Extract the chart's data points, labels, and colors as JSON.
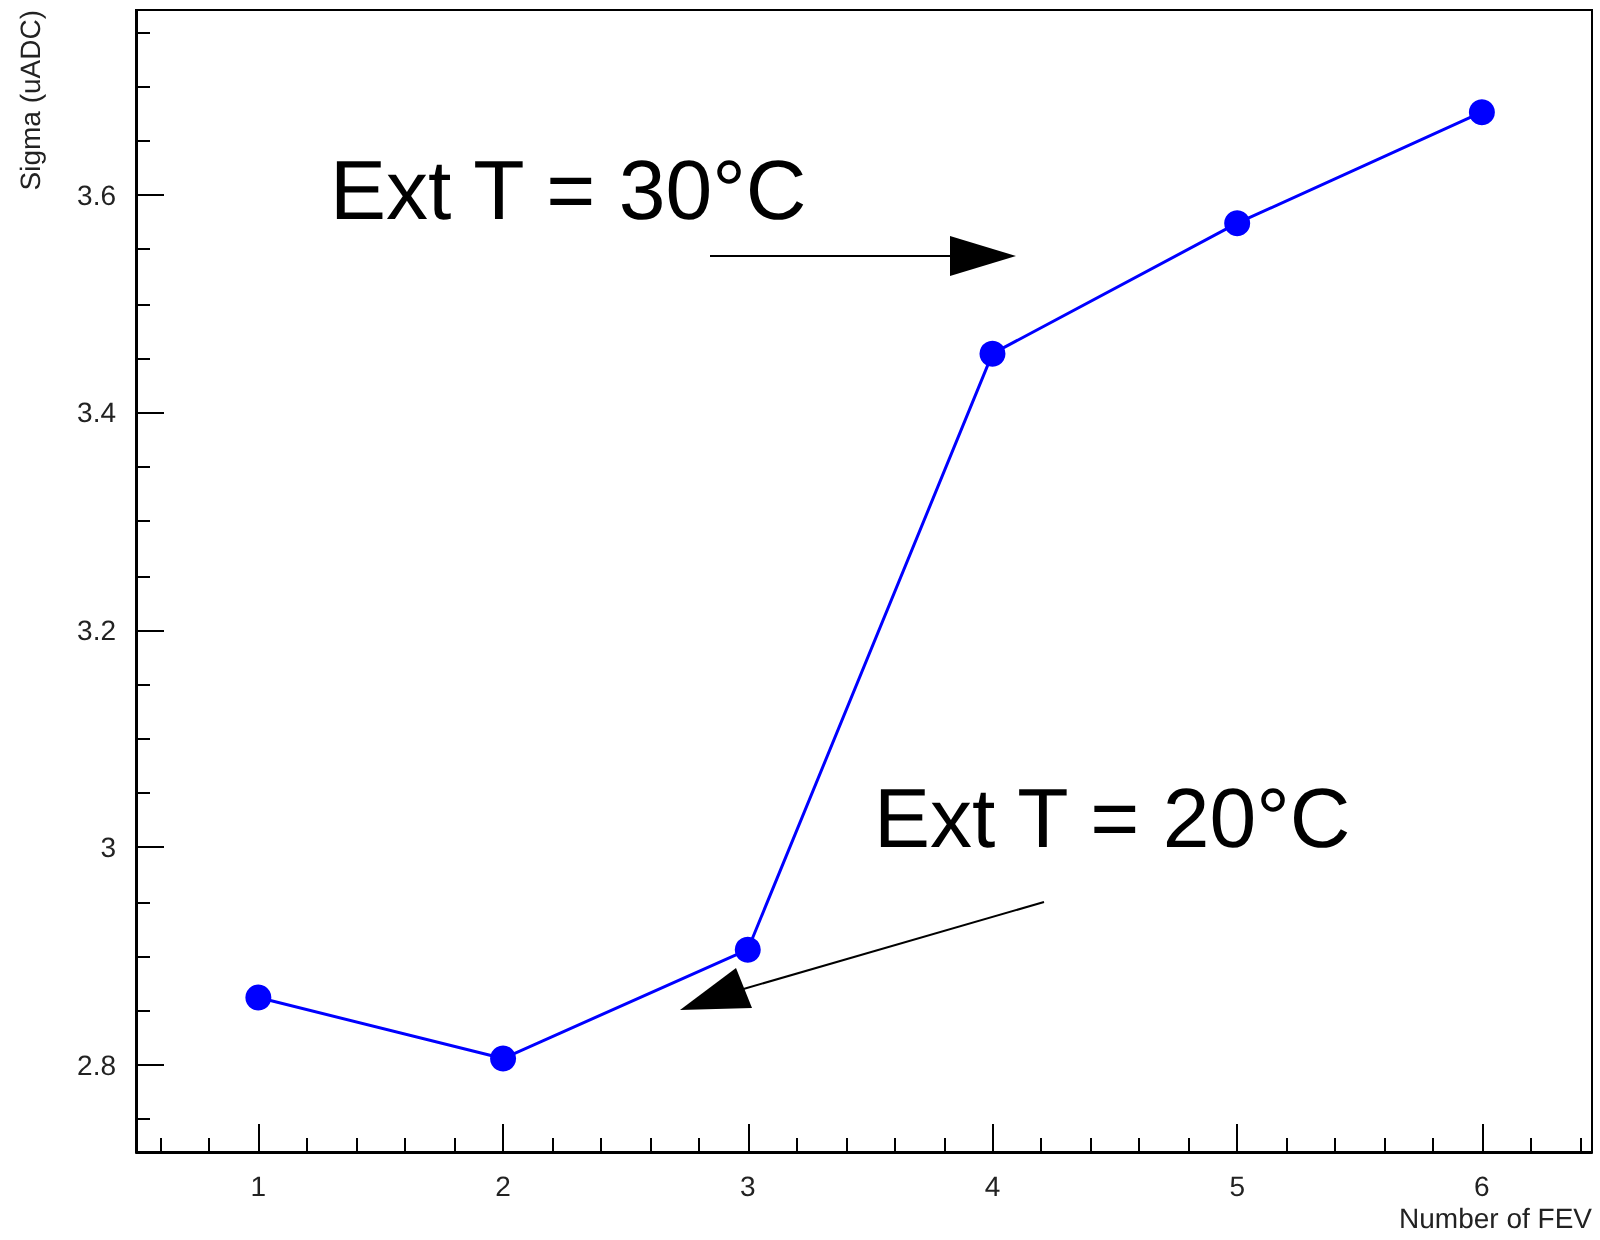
{
  "chart_data": {
    "type": "line",
    "xlabel": "Number of FEV",
    "ylabel": "Sigma (uADC)",
    "x": [
      1,
      2,
      3,
      4,
      5,
      6
    ],
    "series": [
      {
        "color": "#0000ff",
        "values": [
          2.862,
          2.806,
          2.906,
          3.454,
          3.574,
          3.676
        ]
      }
    ],
    "xlim": [
      0.5,
      6.45
    ],
    "xticks": [
      {
        "value": 0.6,
        "label": null
      },
      {
        "value": 0.8,
        "label": null
      },
      1,
      {
        "value": 1.2,
        "label": null
      },
      {
        "value": 1.4,
        "label": null
      },
      {
        "value": 1.6,
        "label": null
      },
      {
        "value": 1.8,
        "label": null
      },
      2,
      {
        "value": 2.2,
        "label": null
      },
      {
        "value": 2.4,
        "label": null
      },
      {
        "value": 2.6,
        "label": null
      },
      {
        "value": 2.8,
        "label": null
      },
      3,
      {
        "value": 3.2,
        "label": null
      },
      {
        "value": 3.4,
        "label": null
      },
      {
        "value": 3.6,
        "label": null
      },
      {
        "value": 3.8,
        "label": null
      },
      4,
      {
        "value": 4.2,
        "label": null
      },
      {
        "value": 4.4,
        "label": null
      },
      {
        "value": 4.6,
        "label": null
      },
      {
        "value": 4.8,
        "label": null
      },
      5,
      {
        "value": 5.2,
        "label": null
      },
      {
        "value": 5.4,
        "label": null
      },
      {
        "value": 5.6,
        "label": null
      },
      {
        "value": 5.8,
        "label": null
      },
      6,
      {
        "value": 6.2,
        "label": null
      },
      {
        "value": 6.4,
        "label": null
      }
    ],
    "ylim": [
      2.72,
      3.77
    ],
    "yticks": [
      {
        "value": 2.75,
        "label": null
      },
      2.8,
      {
        "value": 2.85,
        "label": null
      },
      {
        "value": 2.9,
        "label": null
      },
      {
        "value": 2.95,
        "label": null
      },
      3,
      {
        "value": 3.05,
        "label": null
      },
      {
        "value": 3.1,
        "label": null
      },
      {
        "value": 3.15,
        "label": null
      },
      3.2,
      {
        "value": 3.25,
        "label": null
      },
      {
        "value": 3.3,
        "label": null
      },
      {
        "value": 3.35,
        "label": null
      },
      3.4,
      {
        "value": 3.45,
        "label": null
      },
      {
        "value": 3.5,
        "label": null
      },
      {
        "value": 3.55,
        "label": null
      },
      3.6,
      {
        "value": 3.65,
        "label": null
      },
      {
        "value": 3.7,
        "label": null
      },
      {
        "value": 3.75,
        "label": null
      }
    ],
    "annotations": [
      "Ext T = 30°C",
      "Ext T = 20°C"
    ],
    "marker": "circle",
    "line_style": "solid"
  }
}
